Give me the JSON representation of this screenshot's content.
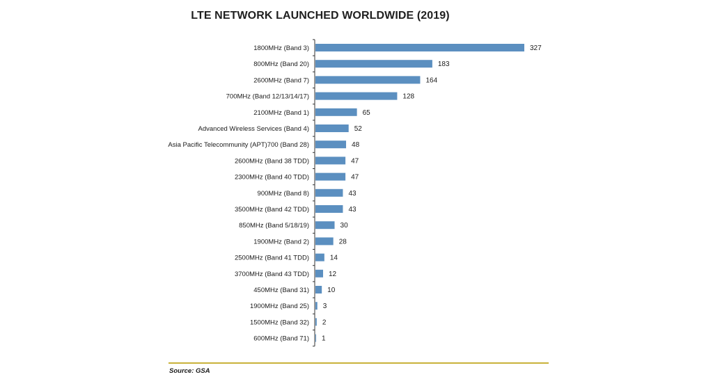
{
  "chart_data": {
    "type": "bar",
    "orientation": "horizontal",
    "title": "LTE NETWORK LAUNCHED WORLDWIDE (2019)",
    "categories": [
      "1800MHz (Band 3)",
      "800MHz (Band 20)",
      "2600MHz (Band 7)",
      "700MHz (Band 12/13/14/17)",
      "2100MHz (Band 1)",
      "Advanced Wireless Services (Band 4)",
      "Asia Pacific Telecommunity (APT)700 (Band 28)",
      "2600MHz (Band 38 TDD)",
      "2300MHz (Band 40 TDD)",
      "900MHz (Band 8)",
      "3500MHz (Band 42 TDD)",
      "850MHz (Band 5/18/19)",
      "1900MHz (Band 2)",
      "2500MHz (Band 41 TDD)",
      "3700MHz (Band 43 TDD)",
      "450MHz (Band 31)",
      "1900MHz (Band 25)",
      "1500MHz (Band 32)",
      "600MHz (Band 71)"
    ],
    "values": [
      327,
      183,
      164,
      128,
      65,
      52,
      48,
      47,
      47,
      43,
      43,
      30,
      28,
      14,
      12,
      10,
      3,
      2,
      1
    ],
    "xlim": [
      0,
      327
    ],
    "bar_color": "#5b8fc0",
    "data_labels": true,
    "grid": false,
    "legend": "none"
  },
  "source": "Source: GSA",
  "colors": {
    "bar": "#5b8fc0",
    "rule": "#c9b23a"
  }
}
